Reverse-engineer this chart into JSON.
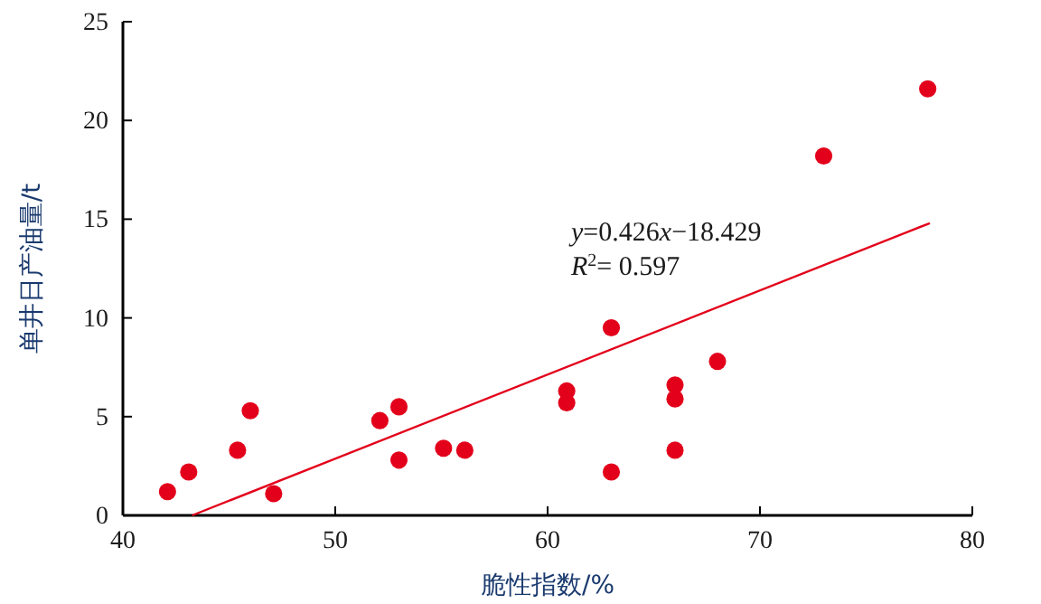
{
  "chart_data": {
    "type": "scatter",
    "xlabel": "脆性指数/%",
    "ylabel": "单井日产油量/t",
    "xlim": [
      40,
      80
    ],
    "ylim": [
      0,
      25
    ],
    "xticks": [
      40,
      50,
      60,
      70,
      80
    ],
    "yticks": [
      0,
      5,
      10,
      15,
      20,
      25
    ],
    "grid": false,
    "annotations": [
      "y=0.426x−18.429",
      "R$^{2}$= 0.597"
    ],
    "series": [
      {
        "color": "#e3001b",
        "marker": "circle",
        "x": [
          42.1,
          43.1,
          45.4,
          46.0,
          47.1,
          52.1,
          53.0,
          53.0,
          55.1,
          56.1,
          60.9,
          60.9,
          63.0,
          63.0,
          66.0,
          66.0,
          66.0,
          68.0,
          73.0,
          77.9
        ],
        "values": [
          1.2,
          2.2,
          3.3,
          5.3,
          1.1,
          4.8,
          5.5,
          2.8,
          3.4,
          3.3,
          6.3,
          5.7,
          9.5,
          2.2,
          6.6,
          5.9,
          3.3,
          7.8,
          18.2,
          21.6
        ]
      },
      {
        "type": "line",
        "color": "#e3001b",
        "x": [
          43.26,
          78
        ],
        "values": [
          0,
          14.8
        ]
      }
    ]
  }
}
